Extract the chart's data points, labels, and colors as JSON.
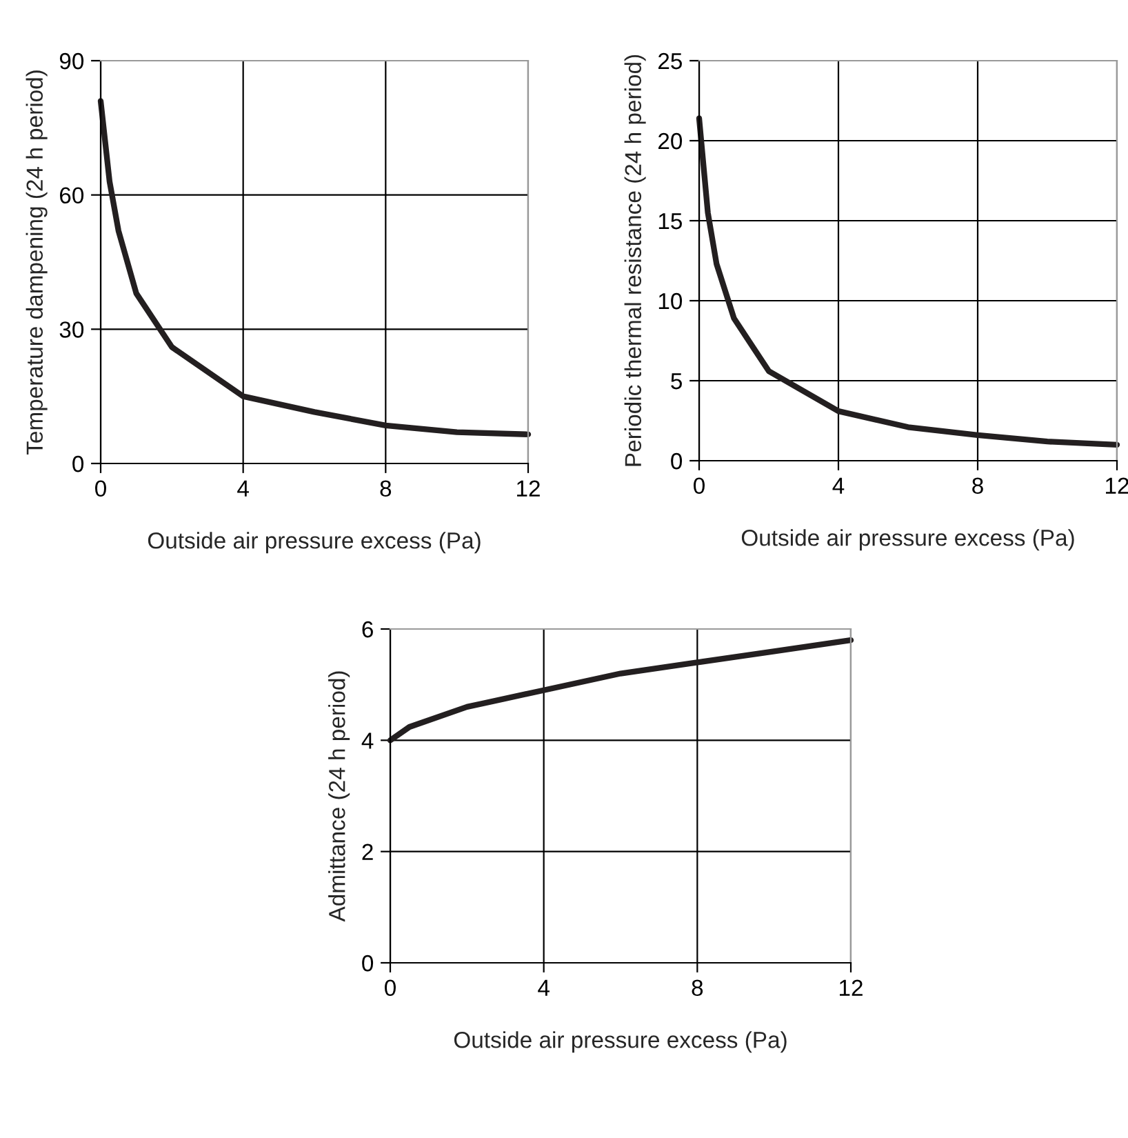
{
  "chart_data": [
    {
      "type": "line",
      "xlabel": "Outside air pressure excess (Pa)",
      "ylabel": "Temperature dampening (24 h period)",
      "x": [
        0,
        0.25,
        0.5,
        1,
        2,
        4,
        6,
        8,
        10,
        12
      ],
      "series": [
        {
          "color": "#231f20",
          "values": [
            81,
            63,
            52,
            38,
            26,
            15,
            11.5,
            8.5,
            7,
            6.5
          ]
        }
      ],
      "xlim": [
        0,
        12
      ],
      "xticks": [
        0,
        4,
        8,
        12
      ],
      "ylim": [
        0,
        90
      ],
      "yticks": [
        0,
        30,
        60,
        90
      ],
      "grid": true,
      "marker": "none",
      "line_style": "solid"
    },
    {
      "type": "line",
      "xlabel": "Outside air pressure excess (Pa)",
      "ylabel": "Periodic thermal resistance (24 h period)",
      "x": [
        0,
        0.25,
        0.5,
        1,
        2,
        4,
        6,
        8,
        10,
        12
      ],
      "series": [
        {
          "color": "#231f20",
          "values": [
            21.4,
            15.5,
            12.3,
            8.9,
            5.6,
            3.1,
            2.1,
            1.6,
            1.2,
            1.0
          ]
        }
      ],
      "xlim": [
        0,
        12
      ],
      "xticks": [
        0,
        4,
        8,
        12
      ],
      "ylim": [
        0,
        25
      ],
      "yticks": [
        0,
        5,
        10,
        15,
        20,
        25
      ],
      "grid": true,
      "marker": "none",
      "line_style": "solid"
    },
    {
      "type": "line",
      "xlabel": "Outside air pressure excess (Pa)",
      "ylabel": "Admittance (24 h period)",
      "x": [
        0,
        0.5,
        2,
        4,
        6,
        8,
        10,
        12
      ],
      "series": [
        {
          "color": "#231f20",
          "values": [
            4.0,
            4.24,
            4.6,
            4.9,
            5.2,
            5.4,
            5.6,
            5.8
          ]
        }
      ],
      "xlim": [
        0,
        12
      ],
      "xticks": [
        0,
        4,
        8,
        12
      ],
      "ylim": [
        0,
        6
      ],
      "yticks": [
        0,
        2,
        4,
        6
      ],
      "grid": true,
      "marker": "none",
      "line_style": "solid"
    }
  ]
}
